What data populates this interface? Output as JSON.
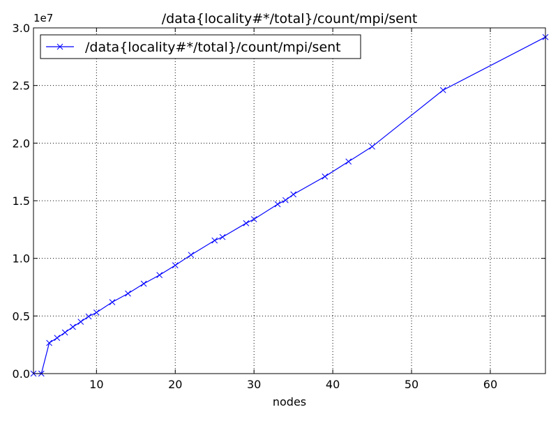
{
  "chart_data": {
    "type": "line",
    "title": "/data{locality#*/total}/count/mpi/sent",
    "xlabel": "nodes",
    "ylabel": "",
    "y_offset_label": "1e7",
    "xlim": [
      2,
      67
    ],
    "ylim": [
      0,
      30000000
    ],
    "xticks": [
      10,
      20,
      30,
      40,
      50,
      60
    ],
    "yticks": [
      0,
      5000000,
      10000000,
      15000000,
      20000000,
      25000000,
      30000000
    ],
    "ytick_labels": [
      "0.0",
      "0.5",
      "1.0",
      "1.5",
      "2.0",
      "2.5",
      "3.0"
    ],
    "grid": true,
    "legend_position": "top-left",
    "series": [
      {
        "name": "/data{locality#*/total}/count/mpi/sent",
        "color": "#0000ff",
        "marker": "x",
        "x": [
          2,
          3,
          4,
          5,
          6,
          7,
          8,
          9,
          10,
          12,
          14,
          16,
          18,
          20,
          22,
          25,
          26,
          29,
          30,
          33,
          34,
          35,
          39,
          42,
          45,
          54,
          67
        ],
        "y": [
          0,
          0,
          2660000,
          3100000,
          3570000,
          4050000,
          4500000,
          4960000,
          5300000,
          6200000,
          6950000,
          7800000,
          8550000,
          9400000,
          10300000,
          11550000,
          11850000,
          13050000,
          13400000,
          14700000,
          15050000,
          15550000,
          17100000,
          18400000,
          19700000,
          24600000,
          29200000
        ]
      }
    ]
  }
}
